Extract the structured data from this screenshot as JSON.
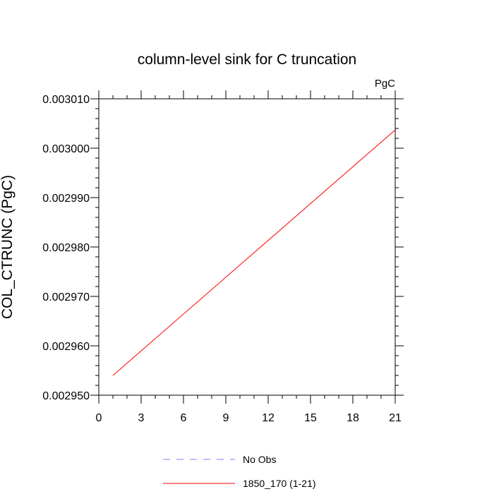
{
  "chart_data": {
    "type": "line",
    "title": "column-level sink for C truncation",
    "units": "PgC",
    "xlabel": "",
    "ylabel": "COL_CTRUNC  (PgC)",
    "xlim": [
      0,
      21
    ],
    "ylim": [
      0.00295,
      0.00301
    ],
    "x_ticks": [
      0,
      3,
      6,
      9,
      12,
      15,
      18,
      21
    ],
    "x_tick_labels": [
      "0",
      "3",
      "6",
      "9",
      "12",
      "15",
      "18",
      "21"
    ],
    "y_ticks": [
      0.00295,
      0.00296,
      0.00297,
      0.00298,
      0.00299,
      0.003,
      0.00301
    ],
    "y_tick_labels": [
      "0.002950",
      "0.002960",
      "0.002970",
      "0.002980",
      "0.002990",
      "0.003000",
      "0.003010"
    ],
    "grid": false,
    "legend_position": "bottom",
    "series": [
      {
        "name": "1850_170 (1-21)",
        "color": "#ff0000",
        "line_style": "solid",
        "x": [
          1,
          21
        ],
        "y": [
          0.002954,
          0.0030037
        ]
      }
    ],
    "legend": [
      {
        "label": "No Obs",
        "color": "#8080ff",
        "line_style": "dashed"
      },
      {
        "label": "1850_170 (1-21)",
        "color": "#ff0000",
        "line_style": "solid"
      }
    ]
  }
}
